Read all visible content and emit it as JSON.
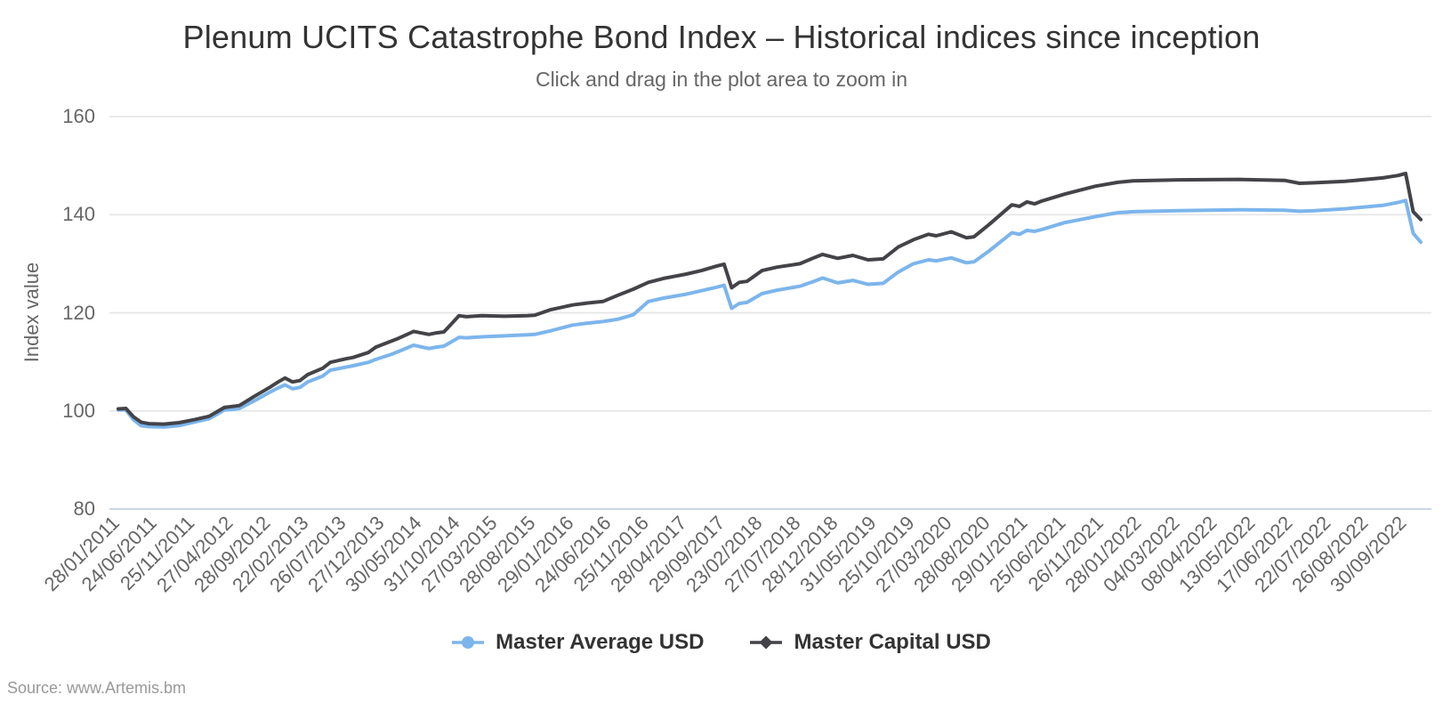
{
  "chart": {
    "title": "Plenum UCITS Catastrophe Bond Index – Historical indices since inception",
    "subtitle": "Click and drag in the plot area to zoom in",
    "source": "Source: www.Artemis.bm",
    "y_axis": {
      "title": "Index value"
    },
    "legend": [
      {
        "name": "Master Average USD",
        "color": "#7cb5ec",
        "marker": "circle"
      },
      {
        "name": "Master Capital USD",
        "color": "#434348",
        "marker": "diamond"
      }
    ]
  },
  "colors": {
    "grid": "#e6e6e6",
    "axis_line": "#ccd6eb",
    "label": "#666666",
    "title": "#333333",
    "source": "#999999"
  },
  "chart_data": {
    "type": "line",
    "title": "Plenum UCITS Catastrophe Bond Index – Historical indices since inception",
    "subtitle": "Click and drag in the plot area to zoom in",
    "xlabel": "",
    "ylabel": "Index value",
    "ylim": [
      80,
      160
    ],
    "yticks": [
      160,
      140,
      120,
      100,
      80
    ],
    "grid": "horizontal-only",
    "legend_position": "bottom-center",
    "n_points": 173,
    "label_step": 5,
    "x_labels": [
      "28/01/2011",
      "24/06/2011",
      "25/11/2011",
      "27/04/2012",
      "28/09/2012",
      "22/02/2013",
      "26/07/2013",
      "27/12/2013",
      "30/05/2014",
      "31/10/2014",
      "27/03/2015",
      "28/08/2015",
      "29/01/2016",
      "24/06/2016",
      "25/11/2016",
      "28/04/2017",
      "29/09/2017",
      "23/02/2018",
      "27/07/2018",
      "28/12/2018",
      "31/05/2019",
      "25/10/2019",
      "27/03/2020",
      "28/08/2020",
      "29/01/2021",
      "25/06/2021",
      "26/11/2021",
      "28/01/2022",
      "04/03/2022",
      "08/04/2022",
      "13/05/2022",
      "17/06/2022",
      "22/07/2022",
      "26/08/2022",
      "30/09/2022"
    ],
    "series": [
      {
        "name": "Master Average USD",
        "color": "#7cb5ec",
        "marker": "circle",
        "points": [
          [
            0,
            100.2
          ],
          [
            1,
            100.2
          ],
          [
            2,
            98.2
          ],
          [
            3,
            97.0
          ],
          [
            4,
            96.8
          ],
          [
            6,
            96.7
          ],
          [
            8,
            97.0
          ],
          [
            10,
            97.7
          ],
          [
            12,
            98.4
          ],
          [
            14,
            100.2
          ],
          [
            15,
            100.3
          ],
          [
            16,
            100.5
          ],
          [
            18,
            102.1
          ],
          [
            20,
            103.8
          ],
          [
            21,
            104.6
          ],
          [
            22,
            105.3
          ],
          [
            23,
            104.5
          ],
          [
            24,
            104.8
          ],
          [
            25,
            105.9
          ],
          [
            27,
            107.1
          ],
          [
            28,
            108.3
          ],
          [
            30,
            108.9
          ],
          [
            31,
            109.2
          ],
          [
            33,
            109.9
          ],
          [
            34,
            110.5
          ],
          [
            36,
            111.5
          ],
          [
            37,
            112.1
          ],
          [
            39,
            113.4
          ],
          [
            41,
            112.7
          ],
          [
            42,
            113.0
          ],
          [
            43,
            113.2
          ],
          [
            45,
            115.0
          ],
          [
            46,
            114.9
          ],
          [
            48,
            115.1
          ],
          [
            51,
            115.3
          ],
          [
            54,
            115.5
          ],
          [
            55,
            115.6
          ],
          [
            57,
            116.3
          ],
          [
            60,
            117.5
          ],
          [
            62,
            117.9
          ],
          [
            64,
            118.2
          ],
          [
            66,
            118.7
          ],
          [
            68,
            119.6
          ],
          [
            70,
            122.3
          ],
          [
            72,
            123.0
          ],
          [
            75,
            123.8
          ],
          [
            77,
            124.5
          ],
          [
            79,
            125.2
          ],
          [
            80,
            125.6
          ],
          [
            81,
            120.9
          ],
          [
            82,
            121.9
          ],
          [
            83,
            122.1
          ],
          [
            85,
            123.9
          ],
          [
            87,
            124.6
          ],
          [
            90,
            125.4
          ],
          [
            92,
            126.5
          ],
          [
            93,
            127.1
          ],
          [
            95,
            126.1
          ],
          [
            97,
            126.6
          ],
          [
            99,
            125.8
          ],
          [
            101,
            126.0
          ],
          [
            103,
            128.3
          ],
          [
            105,
            130.0
          ],
          [
            107,
            130.8
          ],
          [
            108,
            130.6
          ],
          [
            110,
            131.2
          ],
          [
            112,
            130.2
          ],
          [
            113,
            130.4
          ],
          [
            115,
            132.6
          ],
          [
            118,
            136.3
          ],
          [
            119,
            136.0
          ],
          [
            120,
            136.8
          ],
          [
            121,
            136.6
          ],
          [
            122,
            137.0
          ],
          [
            125,
            138.4
          ],
          [
            127,
            139.0
          ],
          [
            129,
            139.6
          ],
          [
            132,
            140.4
          ],
          [
            134,
            140.6
          ],
          [
            140,
            140.8
          ],
          [
            148,
            141.0
          ],
          [
            154,
            140.9
          ],
          [
            156,
            140.7
          ],
          [
            158,
            140.8
          ],
          [
            162,
            141.2
          ],
          [
            167,
            141.9
          ],
          [
            169,
            142.5
          ],
          [
            170,
            142.9
          ],
          [
            171,
            136.2
          ],
          [
            172,
            134.4
          ]
        ]
      },
      {
        "name": "Master Capital USD",
        "color": "#434348",
        "marker": "diamond",
        "points": [
          [
            0,
            100.4
          ],
          [
            1,
            100.5
          ],
          [
            2,
            98.8
          ],
          [
            3,
            97.7
          ],
          [
            4,
            97.4
          ],
          [
            6,
            97.3
          ],
          [
            8,
            97.6
          ],
          [
            10,
            98.2
          ],
          [
            12,
            98.9
          ],
          [
            14,
            100.7
          ],
          [
            15,
            100.9
          ],
          [
            16,
            101.1
          ],
          [
            18,
            103.0
          ],
          [
            20,
            104.8
          ],
          [
            21,
            105.8
          ],
          [
            22,
            106.7
          ],
          [
            23,
            105.9
          ],
          [
            24,
            106.2
          ],
          [
            25,
            107.4
          ],
          [
            27,
            108.7
          ],
          [
            28,
            109.9
          ],
          [
            30,
            110.6
          ],
          [
            31,
            110.9
          ],
          [
            33,
            111.9
          ],
          [
            34,
            113.0
          ],
          [
            36,
            114.2
          ],
          [
            37,
            114.8
          ],
          [
            39,
            116.2
          ],
          [
            41,
            115.6
          ],
          [
            42,
            115.9
          ],
          [
            43,
            116.1
          ],
          [
            45,
            119.4
          ],
          [
            46,
            119.2
          ],
          [
            48,
            119.4
          ],
          [
            51,
            119.3
          ],
          [
            54,
            119.4
          ],
          [
            55,
            119.5
          ],
          [
            57,
            120.6
          ],
          [
            60,
            121.6
          ],
          [
            62,
            122.0
          ],
          [
            64,
            122.3
          ],
          [
            66,
            123.6
          ],
          [
            68,
            124.8
          ],
          [
            70,
            126.2
          ],
          [
            72,
            127.0
          ],
          [
            75,
            127.9
          ],
          [
            77,
            128.6
          ],
          [
            79,
            129.5
          ],
          [
            80,
            129.9
          ],
          [
            81,
            125.1
          ],
          [
            82,
            126.2
          ],
          [
            83,
            126.4
          ],
          [
            85,
            128.6
          ],
          [
            87,
            129.3
          ],
          [
            90,
            130.0
          ],
          [
            92,
            131.3
          ],
          [
            93,
            131.9
          ],
          [
            95,
            131.1
          ],
          [
            97,
            131.7
          ],
          [
            99,
            130.8
          ],
          [
            101,
            131.0
          ],
          [
            103,
            133.4
          ],
          [
            105,
            134.9
          ],
          [
            107,
            136.0
          ],
          [
            108,
            135.7
          ],
          [
            110,
            136.5
          ],
          [
            112,
            135.3
          ],
          [
            113,
            135.5
          ],
          [
            115,
            138.0
          ],
          [
            118,
            142.0
          ],
          [
            119,
            141.7
          ],
          [
            120,
            142.6
          ],
          [
            121,
            142.2
          ],
          [
            122,
            142.8
          ],
          [
            125,
            144.2
          ],
          [
            127,
            145.0
          ],
          [
            129,
            145.8
          ],
          [
            132,
            146.6
          ],
          [
            134,
            146.9
          ],
          [
            140,
            147.1
          ],
          [
            148,
            147.2
          ],
          [
            154,
            147.0
          ],
          [
            156,
            146.4
          ],
          [
            158,
            146.5
          ],
          [
            162,
            146.8
          ],
          [
            167,
            147.5
          ],
          [
            169,
            148.0
          ],
          [
            170,
            148.4
          ],
          [
            171,
            140.6
          ],
          [
            172,
            139.0
          ]
        ]
      }
    ]
  }
}
